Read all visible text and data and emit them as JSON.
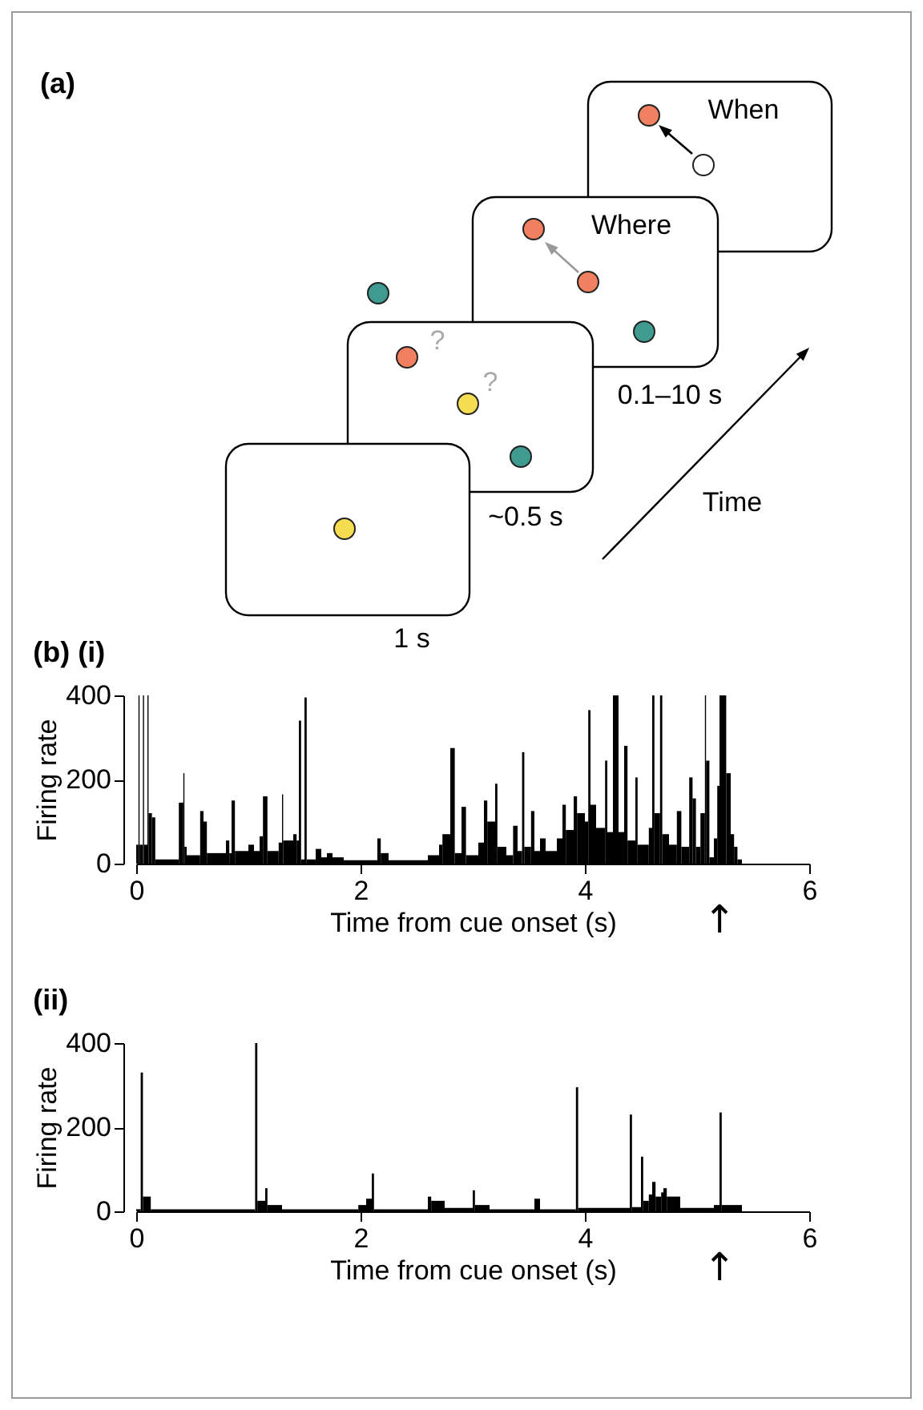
{
  "chart_data": [
    {
      "type": "other",
      "title": "(a)",
      "annotations": [
        "When",
        "Where",
        "?",
        "?",
        "0.1–10 s",
        "~0.5 s",
        "1 s",
        "Time"
      ]
    },
    {
      "type": "histogram",
      "title": "(b) (i)",
      "xlabel": "Time from cue onset (s)",
      "ylabel": "Firing rate",
      "color": "#000000",
      "bins": [
        0,
        0.02,
        0.03,
        0.06,
        0.07,
        0.1,
        0.11,
        0.14,
        0.17,
        0.38,
        0.42,
        0.43,
        0.45,
        0.5,
        0.57,
        0.6,
        0.63,
        0.8,
        0.83,
        0.85,
        0.88,
        1.0,
        1.05,
        1.1,
        1.13,
        1.17,
        1.27,
        1.3,
        1.31,
        1.4,
        1.43,
        1.45,
        1.47,
        1.5,
        1.52,
        1.6,
        1.65,
        1.7,
        1.75,
        1.85,
        2.15,
        2.18,
        2.25,
        2.6,
        2.7,
        2.73,
        2.8,
        2.84,
        2.9,
        2.94,
        3.05,
        3.1,
        3.13,
        3.2,
        3.22,
        3.3,
        3.36,
        3.4,
        3.44,
        3.46,
        3.52,
        3.55,
        3.6,
        3.65,
        3.75,
        3.8,
        3.83,
        3.9,
        3.93,
        4.0,
        4.03,
        4.05,
        4.1,
        4.18,
        4.2,
        4.25,
        4.3,
        4.35,
        4.38,
        4.45,
        4.47,
        4.57,
        4.6,
        4.62,
        4.67,
        4.69,
        4.75,
        4.82,
        4.86,
        4.93,
        4.96,
        4.99,
        5.03,
        5.07,
        5.08,
        5.11,
        5.15,
        5.18,
        5.2,
        5.26,
        5.3,
        5.33,
        5.36,
        5.4
      ],
      "values": [
        45,
        400,
        45,
        400,
        45,
        400,
        120,
        110,
        10,
        145,
        215,
        40,
        20,
        20,
        125,
        100,
        25,
        55,
        25,
        150,
        30,
        45,
        30,
        65,
        160,
        30,
        50,
        165,
        55,
        70,
        55,
        340,
        10,
        395,
        10,
        35,
        15,
        25,
        15,
        8,
        60,
        25,
        8,
        20,
        45,
        70,
        275,
        25,
        135,
        20,
        50,
        150,
        100,
        190,
        40,
        20,
        90,
        30,
        265,
        40,
        125,
        30,
        60,
        30,
        60,
        140,
        80,
        160,
        120,
        100,
        365,
        140,
        85,
        245,
        75,
        400,
        75,
        280,
        55,
        205,
        45,
        85,
        400,
        120,
        400,
        70,
        45,
        125,
        40,
        205,
        155,
        40,
        120,
        400,
        245,
        15,
        60,
        185,
        400,
        215,
        70,
        40,
        10
      ],
      "xlim": [
        0,
        6
      ],
      "xticks": [
        0,
        2,
        4,
        6
      ],
      "ylim": [
        0,
        400
      ],
      "yticks": [
        0,
        200,
        400
      ],
      "annotations": [
        {
          "text": "↑",
          "x": 5.2,
          "y": 0
        }
      ]
    },
    {
      "type": "histogram",
      "title": "(ii)",
      "xlabel": "Time from cue onset (s)",
      "ylabel": "Firing rate",
      "color": "#000000",
      "bins": [
        0,
        0.04,
        0.06,
        0.13,
        1.06,
        1.08,
        1.15,
        1.17,
        1.3,
        1.98,
        2.05,
        2.1,
        2.12,
        2.6,
        2.63,
        2.75,
        3.0,
        3.02,
        3.15,
        3.55,
        3.6,
        3.92,
        3.94,
        4.4,
        4.42,
        4.5,
        4.52,
        4.57,
        4.6,
        4.63,
        4.68,
        4.7,
        4.73,
        4.85,
        5.15,
        5.2,
        5.22,
        5.4
      ],
      "values": [
        5,
        330,
        35,
        5,
        400,
        25,
        55,
        15,
        5,
        15,
        30,
        90,
        5,
        35,
        25,
        8,
        50,
        15,
        5,
        30,
        5,
        295,
        8,
        230,
        10,
        130,
        25,
        40,
        70,
        35,
        45,
        55,
        35,
        8,
        15,
        235,
        15
      ],
      "xlim": [
        0,
        6
      ],
      "xticks": [
        0,
        2,
        4,
        6
      ],
      "ylim": [
        0,
        400
      ],
      "yticks": [
        0,
        200,
        400
      ],
      "annotations": [
        {
          "text": "↑",
          "x": 5.2,
          "y": 0
        }
      ]
    }
  ]
}
